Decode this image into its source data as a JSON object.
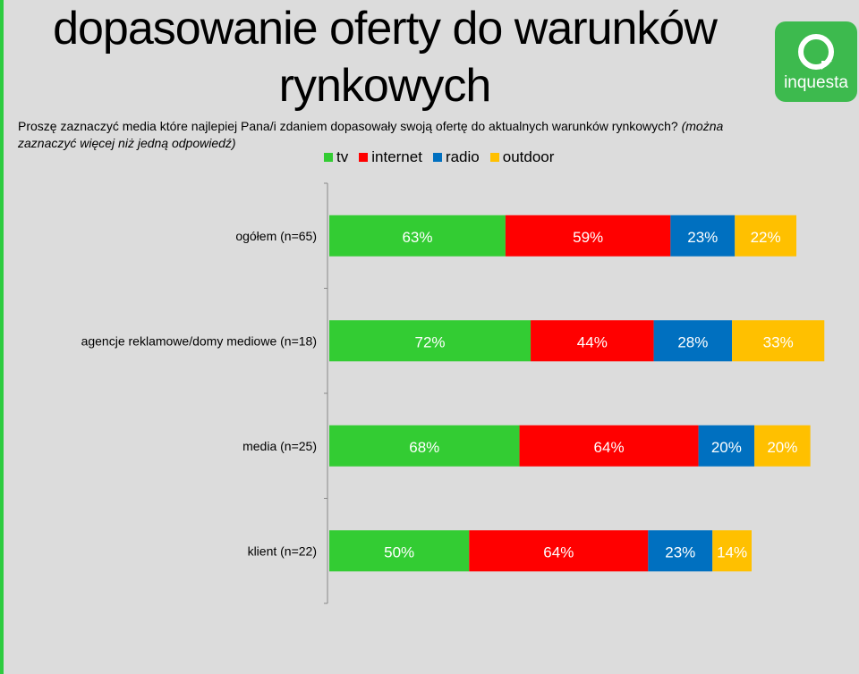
{
  "header": {
    "title": "dopasowanie oferty do warunków rynkowych",
    "question": "Proszę zaznaczyć media które najlepiej Pana/i zdaniem dopasowały swoją ofertę do aktualnych warunków rynkowych?",
    "note": "(można zaznaczyć więcej niż jedną odpowiedź)"
  },
  "logo": {
    "text": "inquesta",
    "color": "#3dba4e"
  },
  "chart_data": {
    "type": "bar",
    "orientation": "horizontal",
    "stacked": true,
    "categories": [
      "ogółem (n=65)",
      "agencje reklamowe/domy mediowe (n=18)",
      "media (n=25)",
      "klient (n=22)"
    ],
    "series": [
      {
        "name": "tv",
        "color": "#33cc33",
        "values": [
          63,
          72,
          68,
          50
        ]
      },
      {
        "name": "internet",
        "color": "#ff0000",
        "values": [
          59,
          44,
          64,
          64
        ]
      },
      {
        "name": "radio",
        "color": "#0070c0",
        "values": [
          23,
          28,
          20,
          23
        ]
      },
      {
        "name": "outdoor",
        "color": "#ffc000",
        "values": [
          22,
          33,
          20,
          14
        ]
      }
    ],
    "value_suffix": "%",
    "legend_position": "top",
    "grid": false
  }
}
